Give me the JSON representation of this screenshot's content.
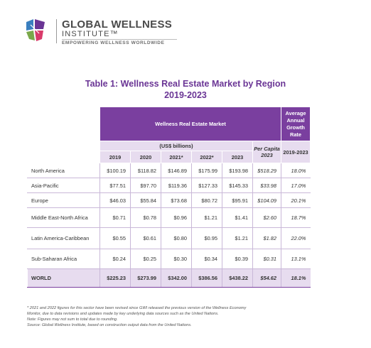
{
  "brand": {
    "name": "GLOBAL WELLNESS",
    "sub": "INSTITUTE™",
    "tagline": "EMPOWERING WELLNESS WORLDWIDE",
    "colors": [
      "#3a7fbf",
      "#7aa84a",
      "#d93a6a",
      "#6a3595"
    ]
  },
  "title": {
    "line1": "Table 1: Wellness Real Estate Market by Region",
    "line2": "2019-2023"
  },
  "table": {
    "band_label": "Wellness Real Estate Market",
    "growth_label": "Average Annual Growth Rate",
    "units_label": "(US$ billions)",
    "per_capita_label": "Per Capita 2023",
    "growth_years": "2019-2023",
    "years": [
      "2019",
      "2020",
      "2021*",
      "2022*",
      "2023"
    ],
    "rows": [
      {
        "region": "North America",
        "values": [
          "$100.19",
          "$118.82",
          "$146.89",
          "$175.99",
          "$193.98"
        ],
        "per_capita": "$518.29",
        "growth": "18.0%"
      },
      {
        "region": "Asia-Pacific",
        "values": [
          "$77.51",
          "$97.70",
          "$119.36",
          "$127.33",
          "$145.33"
        ],
        "per_capita": "$33.98",
        "growth": "17.0%"
      },
      {
        "region": "Europe",
        "values": [
          "$46.03",
          "$55.84",
          "$73.68",
          "$80.72",
          "$95.91"
        ],
        "per_capita": "$104.09",
        "growth": "20.1%"
      },
      {
        "region": "Middle East-North Africa",
        "values": [
          "$0.71",
          "$0.78",
          "$0.96",
          "$1.21",
          "$1.41"
        ],
        "per_capita": "$2.60",
        "growth": "18.7%"
      },
      {
        "region": "Latin America-Caribbean",
        "values": [
          "$0.55",
          "$0.61",
          "$0.80",
          "$0.95",
          "$1.21"
        ],
        "per_capita": "$1.82",
        "growth": "22.0%"
      },
      {
        "region": "Sub-Saharan Africa",
        "values": [
          "$0.24",
          "$0.25",
          "$0.30",
          "$0.34",
          "$0.39"
        ],
        "per_capita": "$0.31",
        "growth": "13.1%"
      }
    ],
    "total": {
      "region": "WORLD",
      "values": [
        "$225.23",
        "$273.99",
        "$342.00",
        "$386.56",
        "$438.22"
      ],
      "per_capita": "$54.62",
      "growth": "18.1%"
    }
  },
  "notes": [
    "* 2021 and 2022 figures for this sector have been revised since GWI released the previous version of the Wellness Economy",
    "Monitor, due to data revisions and updates made by key underlying data sources such as the United Nations.",
    "Note: Figures may not sum to total due to rounding.",
    "Source: Global Wellness Institute, based on construction output data from the United Nations."
  ]
}
